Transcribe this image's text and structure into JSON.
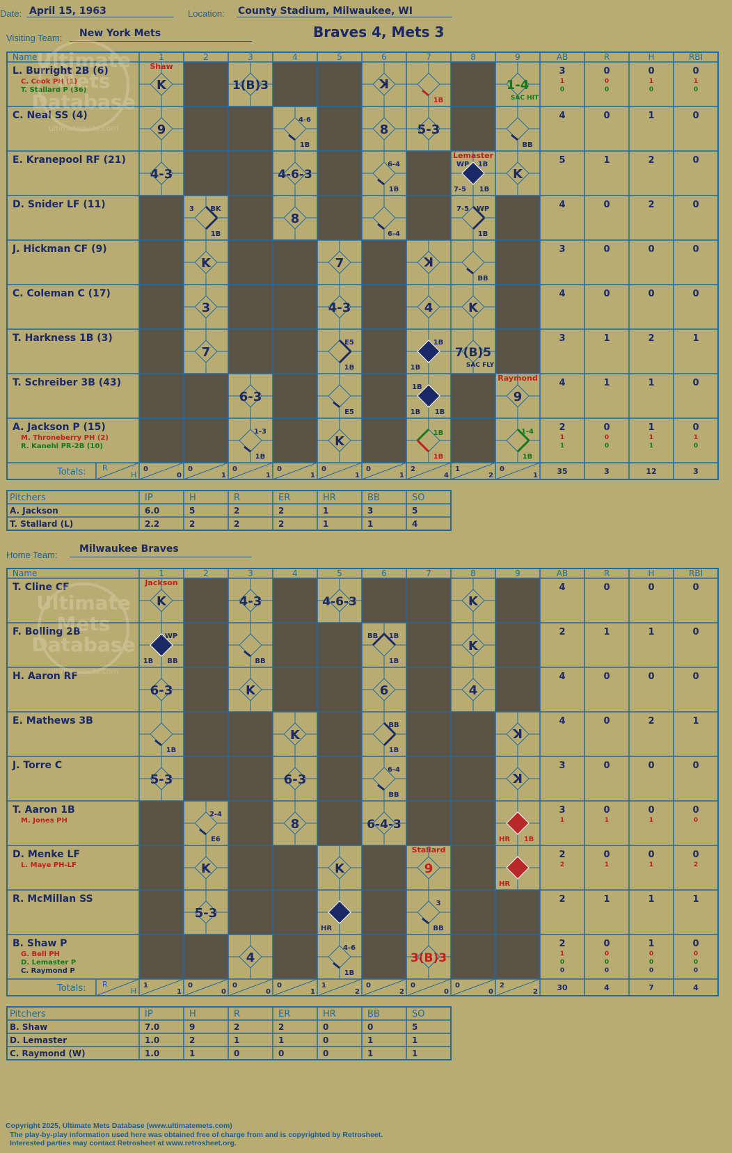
{
  "header": {
    "date_label": "Date:",
    "date": "April 15, 1963",
    "location_label": "Location:",
    "location": "County Stadium, Milwaukee, WI",
    "visiting_label": "Visiting Team:",
    "visiting_team": "New York Mets",
    "home_label": "Home Team:",
    "home_team": "Milwaukee Braves",
    "result": "Braves 4, Mets 3"
  },
  "colors": {
    "background": "#b9ac73",
    "grid": "#1c6aa6",
    "dark": "#5b5446",
    "ink": "#1b2a66",
    "red": "#c22020",
    "green": "#127a1e"
  },
  "watermark": {
    "lines": [
      "Ultimate",
      "Mets",
      "Database"
    ],
    "url": "ultimatemets.com"
  },
  "columns": {
    "name": "Name",
    "innings": [
      "1",
      "2",
      "3",
      "4",
      "5",
      "6",
      "7",
      "8",
      "9"
    ],
    "stats": [
      "AB",
      "R",
      "H",
      "RBI"
    ],
    "totals": "Totals:",
    "r": "R",
    "h": "H"
  },
  "visitors": {
    "rows": [
      {
        "name": "L. Burright 2B (6)",
        "subs": [
          {
            "t": "C. Cook PH (1)",
            "c": "red"
          },
          {
            "t": "T. Stallard P (36)",
            "c": "green"
          }
        ],
        "ab": "3",
        "r": "0",
        "h": "0",
        "rbi": "0",
        "sub_stats": [
          {
            "c": "red",
            "v": [
              "1",
              "0",
              "1",
              "1"
            ]
          },
          {
            "c": "green",
            "v": [
              "0",
              "0",
              "0",
              "0"
            ]
          }
        ],
        "cells": {
          "1": {
            "t": "K",
            "note": "Shaw",
            "note_c": "red"
          },
          "3": {
            "t": "1(B)3",
            "diag": 0
          },
          "6": {
            "t": "K",
            "rot": 1
          },
          "7": {
            "line": "1B",
            "c": "red"
          },
          "9": {
            "t": "1-4",
            "c": "green",
            "corner": "SAC HIT"
          }
        }
      },
      {
        "name": "C. Neal SS (4)",
        "ab": "4",
        "r": "0",
        "h": "1",
        "rbi": "0",
        "cells": {
          "1": {
            "t": "9"
          },
          "4": {
            "line": "1B",
            "tr": "4-6"
          },
          "6": {
            "t": "8"
          },
          "7": {
            "t": "5-3"
          },
          "9": {
            "line": "BB"
          }
        }
      },
      {
        "name": "E. Kranepool RF (21)",
        "ab": "5",
        "r": "1",
        "h": "2",
        "rbi": "0",
        "cells": {
          "1": {
            "t": "4-3"
          },
          "4": {
            "t": "4-6-3"
          },
          "6": {
            "line": "1B",
            "tr": "6-4"
          },
          "8": {
            "run": true,
            "note": "Lemaster",
            "note_c": "red",
            "tl": "WP",
            "tr": "1B",
            "bl": "7-5",
            "br": "1B"
          },
          "9": {
            "t": "K"
          }
        }
      },
      {
        "name": "D. Snider LF (11)",
        "ab": "4",
        "r": "0",
        "h": "2",
        "rbi": "0",
        "cells": {
          "2": {
            "line2": "1B",
            "tl": "3",
            "tr": "BK"
          },
          "4": {
            "t": "8"
          },
          "6": {
            "line": "6-4",
            "lo": true
          },
          "8": {
            "line2": "1B",
            "tl": "7-5",
            "tr": "WP"
          }
        }
      },
      {
        "name": "J. Hickman CF (9)",
        "ab": "3",
        "r": "0",
        "h": "0",
        "rbi": "0",
        "cells": {
          "2": {
            "t": "K"
          },
          "5": {
            "t": "7"
          },
          "7": {
            "t": "K",
            "rot": 1
          },
          "8": {
            "line": "BB"
          }
        }
      },
      {
        "name": "C. Coleman C (17)",
        "ab": "4",
        "r": "0",
        "h": "0",
        "rbi": "0",
        "cells": {
          "2": {
            "t": "3"
          },
          "5": {
            "t": "4-3"
          },
          "7": {
            "t": "4"
          },
          "8": {
            "t": "K"
          }
        }
      },
      {
        "name": "T. Harkness 1B (3)",
        "ab": "3",
        "r": "1",
        "h": "2",
        "rbi": "1",
        "cells": {
          "2": {
            "t": "7"
          },
          "5": {
            "line2": "1B",
            "tr": "E5"
          },
          "7": {
            "run": true,
            "tr": "1B",
            "bl": "1B"
          },
          "8": {
            "t": "7(B)5",
            "corner": "SAC FLY"
          }
        }
      },
      {
        "name": "T. Schreiber 3B (43)",
        "ab": "4",
        "r": "1",
        "h": "1",
        "rbi": "0",
        "cells": {
          "3": {
            "t": "6-3"
          },
          "5": {
            "line": "E5"
          },
          "7": {
            "run": true,
            "tl": "1B",
            "bl": "1B",
            "br": "1B"
          },
          "9": {
            "t": "9",
            "note": "Raymond",
            "note_c": "red"
          }
        }
      },
      {
        "name": "A. Jackson P (15)",
        "subs": [
          {
            "t": "M. Throneberry PH (2)",
            "c": "red"
          },
          {
            "t": "R. Kanehl PR-2B (10)",
            "c": "green"
          }
        ],
        "ab": "2",
        "r": "0",
        "h": "1",
        "rbi": "0",
        "sub_stats": [
          {
            "c": "red",
            "v": [
              "1",
              "0",
              "1",
              "1"
            ]
          },
          {
            "c": "green",
            "v": [
              "1",
              "0",
              "1",
              "0"
            ]
          }
        ],
        "cells": {
          "3": {
            "line": "1B",
            "tr": "1-3"
          },
          "5": {
            "t": "K"
          },
          "7": {
            "line2g": "1B",
            "tl2": "1B"
          },
          "9": {
            "line2g2": "1B",
            "tr": "1-4"
          }
        }
      }
    ],
    "totals": {
      "inn": [
        [
          "0",
          "0"
        ],
        [
          "0",
          "1"
        ],
        [
          "0",
          "1"
        ],
        [
          "0",
          "1"
        ],
        [
          "0",
          "1"
        ],
        [
          "0",
          "1"
        ],
        [
          "2",
          "4"
        ],
        [
          "1",
          "2"
        ],
        [
          "0",
          "1"
        ]
      ],
      "ab": "35",
      "r": "3",
      "h": "12",
      "rbi": "3"
    },
    "dark": [
      [
        2,
        4,
        5,
        8
      ],
      [
        2,
        3,
        5,
        8
      ],
      [
        2,
        3,
        5,
        7
      ],
      [
        1,
        3,
        5,
        7,
        9
      ],
      [
        1,
        3,
        4,
        6,
        9
      ],
      [
        1,
        3,
        4,
        6,
        9
      ],
      [
        1,
        3,
        4,
        6,
        9
      ],
      [
        1,
        2,
        4,
        6,
        8
      ],
      [
        1,
        2,
        4,
        6,
        8
      ]
    ],
    "pitchers": {
      "head": [
        "Pitchers",
        "IP",
        "H",
        "R",
        "ER",
        "HR",
        "BB",
        "SO"
      ],
      "rows": [
        [
          "A. Jackson",
          "6.0",
          "5",
          "2",
          "2",
          "1",
          "3",
          "5"
        ],
        [
          "T. Stallard (L)",
          "2.2",
          "2",
          "2",
          "2",
          "1",
          "1",
          "4"
        ]
      ]
    }
  },
  "home": {
    "rows": [
      {
        "name": "T. Cline CF",
        "ab": "4",
        "r": "0",
        "h": "0",
        "rbi": "0",
        "cells": {
          "1": {
            "t": "K",
            "note": "Jackson",
            "note_c": "red"
          },
          "3": {
            "t": "4-3"
          },
          "5": {
            "t": "4-6-3"
          },
          "8": {
            "t": "K"
          }
        }
      },
      {
        "name": "F. Bolling 2B",
        "ab": "2",
        "r": "1",
        "h": "1",
        "rbi": "0",
        "cells": {
          "1": {
            "run": true,
            "tr": "WP",
            "bl": "1B",
            "br": "BB"
          },
          "3": {
            "line": "BB"
          },
          "6": {
            "line3": "1B",
            "tl": "BB",
            "tr": "1B"
          },
          "8": {
            "t": "K"
          }
        }
      },
      {
        "name": "H. Aaron RF",
        "ab": "4",
        "r": "0",
        "h": "0",
        "rbi": "0",
        "cells": {
          "1": {
            "t": "6-3"
          },
          "3": {
            "t": "K"
          },
          "6": {
            "t": "6"
          },
          "8": {
            "t": "4"
          }
        }
      },
      {
        "name": "E. Mathews 3B",
        "ab": "4",
        "r": "0",
        "h": "2",
        "rbi": "1",
        "cells": {
          "1": {
            "line": "1B"
          },
          "4": {
            "t": "K"
          },
          "6": {
            "line2": "1B",
            "tr": "BB"
          },
          "9": {
            "t": "K",
            "rot": 1
          }
        }
      },
      {
        "name": "J. Torre C",
        "ab": "3",
        "r": "0",
        "h": "0",
        "rbi": "0",
        "cells": {
          "1": {
            "t": "5-3"
          },
          "4": {
            "t": "6-3"
          },
          "6": {
            "line": "BB",
            "tr": "6-4"
          },
          "9": {
            "t": "K",
            "rot": 1
          }
        }
      },
      {
        "name": "T. Aaron 1B",
        "subs": [
          {
            "t": "M. Jones PH",
            "c": "red"
          }
        ],
        "ab": "3",
        "r": "0",
        "h": "0",
        "rbi": "0",
        "sub_stats": [
          {
            "c": "red",
            "v": [
              "1",
              "1",
              "1",
              "0"
            ]
          }
        ],
        "cells": {
          "2": {
            "line": "E6",
            "tr": "2-4"
          },
          "4": {
            "t": "8"
          },
          "6": {
            "t": "6-4-3"
          },
          "9": {
            "runred": true,
            "bl": "HR",
            "br": "1B"
          }
        }
      },
      {
        "name": "D. Menke LF",
        "subs": [
          {
            "t": "L. Maye PH-LF",
            "c": "red"
          }
        ],
        "ab": "2",
        "r": "0",
        "h": "0",
        "rbi": "0",
        "sub_stats": [
          {
            "c": "red",
            "v": [
              "2",
              "1",
              "1",
              "2"
            ]
          }
        ],
        "cells": {
          "2": {
            "t": "K"
          },
          "5": {
            "t": "K"
          },
          "7": {
            "t": "9",
            "c": "red",
            "note": "Stallard",
            "note_c": "red"
          },
          "9": {
            "runred": true,
            "bl": "HR"
          }
        }
      },
      {
        "name": "R. McMillan SS",
        "ab": "2",
        "r": "1",
        "h": "1",
        "rbi": "1",
        "cells": {
          "2": {
            "t": "5-3"
          },
          "5": {
            "run": true,
            "bl": "HR"
          },
          "7": {
            "line": "BB",
            "tr": "3"
          }
        }
      },
      {
        "name": "B. Shaw P",
        "subs": [
          {
            "t": "G. Bell PH",
            "c": "red"
          },
          {
            "t": "D. Lemaster P",
            "c": "green"
          },
          {
            "t": "C. Raymond P",
            "c": "ink"
          }
        ],
        "ab": "2",
        "r": "0",
        "h": "1",
        "rbi": "0",
        "sub_stats": [
          {
            "c": "red",
            "v": [
              "1",
              "0",
              "0",
              "0"
            ]
          },
          {
            "c": "green",
            "v": [
              "0",
              "0",
              "0",
              "0"
            ]
          },
          {
            "c": "ink",
            "v": [
              "0",
              "0",
              "0",
              "0"
            ]
          }
        ],
        "cells": {
          "3": {
            "t": "4"
          },
          "5": {
            "line": "1B",
            "tr": "4-6"
          },
          "7": {
            "t": "3(B)3",
            "c": "red",
            "diag": 0
          }
        }
      }
    ],
    "totals": {
      "inn": [
        [
          "1",
          "1"
        ],
        [
          "0",
          "0"
        ],
        [
          "0",
          "0"
        ],
        [
          "0",
          "1"
        ],
        [
          "1",
          "2"
        ],
        [
          "0",
          "2"
        ],
        [
          "0",
          "0"
        ],
        [
          "0",
          "0"
        ],
        [
          "2",
          "2"
        ]
      ],
      "ab": "30",
      "r": "4",
      "h": "7",
      "rbi": "4"
    },
    "dark": [
      [
        2,
        4,
        6,
        7,
        9
      ],
      [
        2,
        4,
        5,
        7,
        9
      ],
      [
        2,
        4,
        5,
        7,
        9
      ],
      [
        2,
        3,
        5,
        7,
        8
      ],
      [
        2,
        3,
        5,
        7,
        8
      ],
      [
        1,
        3,
        5,
        7,
        8
      ],
      [
        1,
        3,
        4,
        6,
        8
      ],
      [
        1,
        3,
        4,
        6,
        8,
        9
      ],
      [
        1,
        2,
        4,
        6,
        8,
        9
      ]
    ],
    "pitchers": {
      "head": [
        "Pitchers",
        "IP",
        "H",
        "R",
        "ER",
        "HR",
        "BB",
        "SO"
      ],
      "rows": [
        [
          "B. Shaw",
          "7.0",
          "9",
          "2",
          "2",
          "0",
          "0",
          "5"
        ],
        [
          "D. Lemaster",
          "1.0",
          "2",
          "1",
          "1",
          "0",
          "1",
          "1"
        ],
        [
          "C. Raymond (W)",
          "1.0",
          "1",
          "0",
          "0",
          "0",
          "1",
          "1"
        ]
      ]
    }
  },
  "footer": {
    "lines": [
      "Copyright 2025, Ultimate Mets Database (www.ultimatemets.com)",
      "The play-by-play information used here was obtained free of charge from and is copyrighted by Retrosheet.",
      "Interested parties may contact Retrosheet at www.retrosheet.org."
    ]
  }
}
